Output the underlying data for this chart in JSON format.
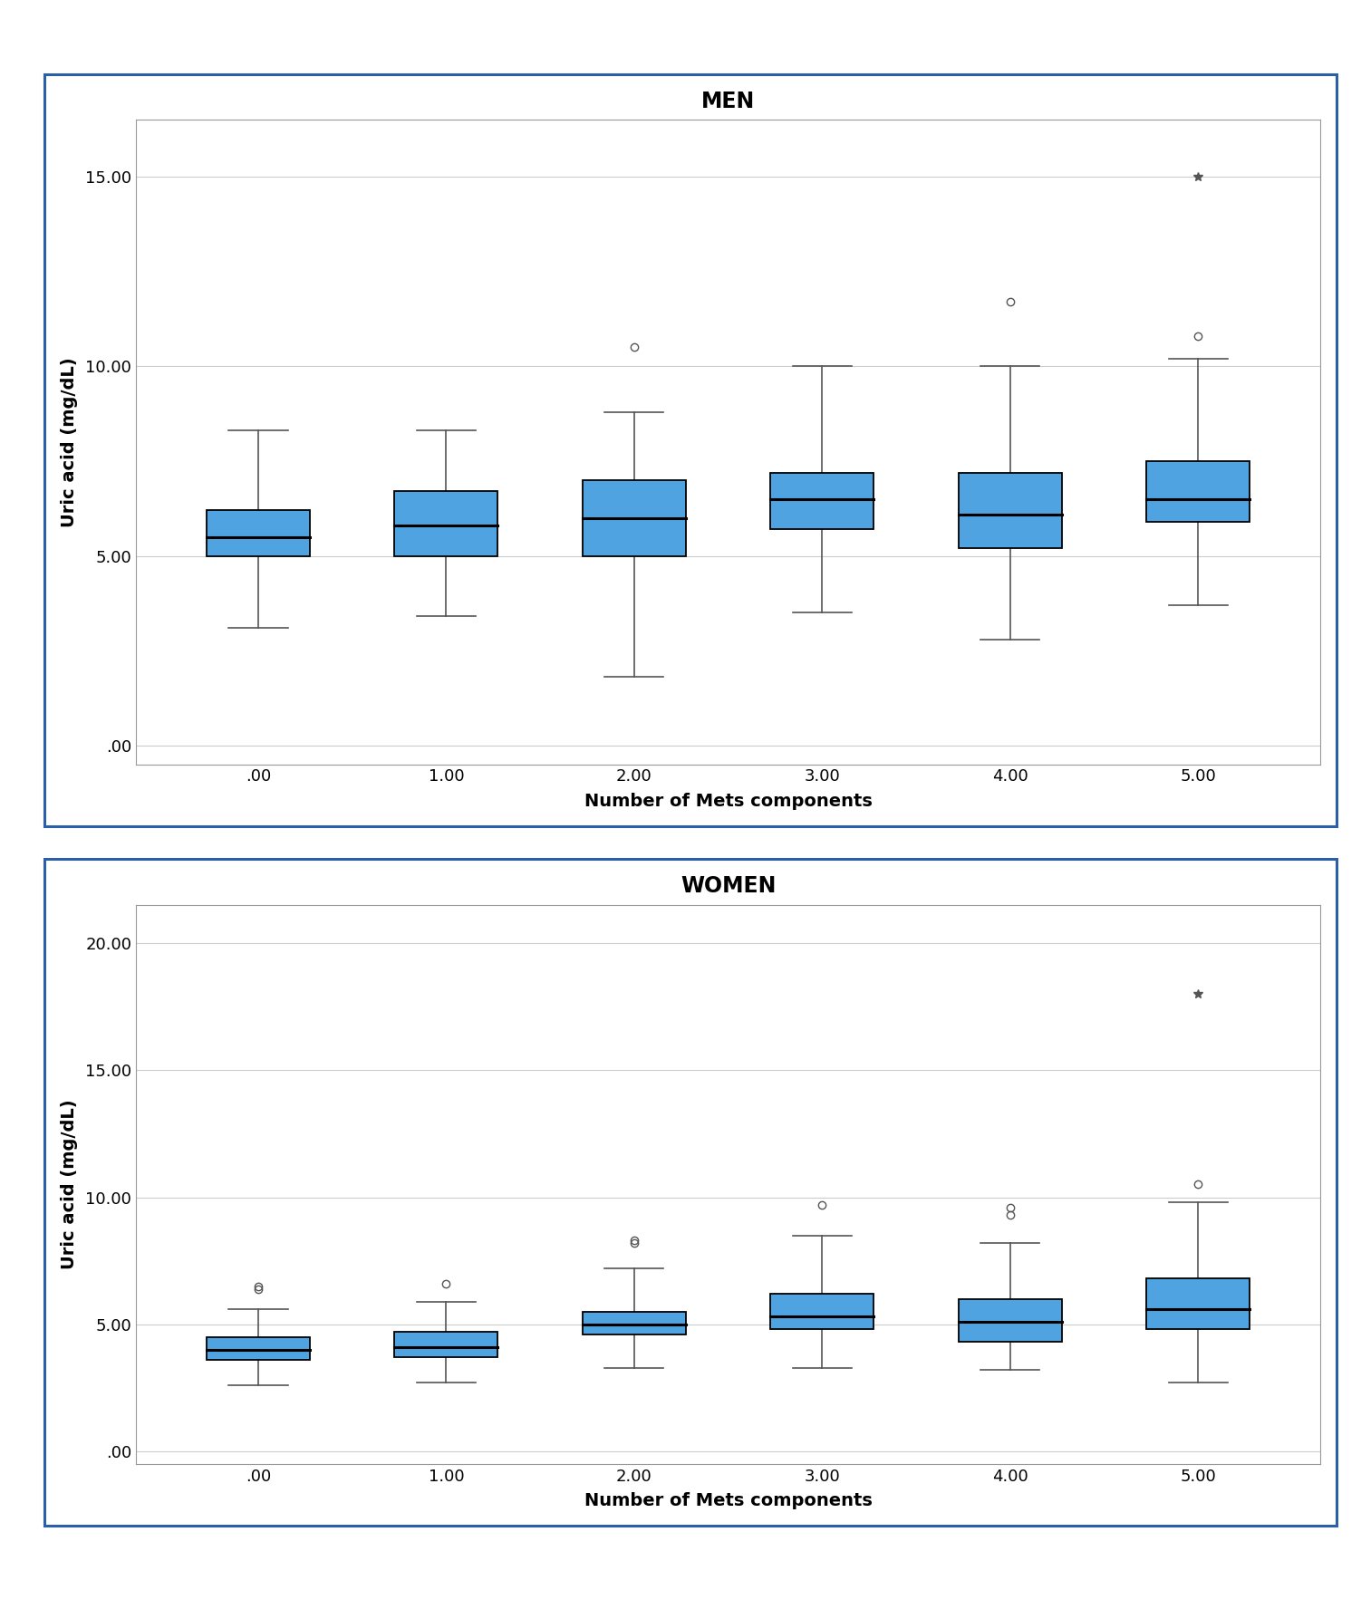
{
  "men": {
    "title": "MEN",
    "xlabel": "Number of Mets components",
    "ylabel": "Uric acid (mg/dL)",
    "yticks": [
      0.0,
      5.0,
      10.0,
      15.0
    ],
    "ytick_labels": [
      ".00",
      "5.00",
      "10.00",
      "15.00"
    ],
    "ylim": [
      -0.5,
      16.5
    ],
    "xtick_labels": [
      ".00",
      "1.00",
      "2.00",
      "3.00",
      "4.00",
      "5.00"
    ],
    "boxes": [
      {
        "q1": 5.0,
        "median": 5.5,
        "q3": 6.2,
        "whislo": 3.1,
        "whishi": 8.3,
        "fliers_circle": [],
        "fliers_star": []
      },
      {
        "q1": 5.0,
        "median": 5.8,
        "q3": 6.7,
        "whislo": 3.4,
        "whishi": 8.3,
        "fliers_circle": [],
        "fliers_star": []
      },
      {
        "q1": 5.0,
        "median": 6.0,
        "q3": 7.0,
        "whislo": 1.8,
        "whishi": 8.8,
        "fliers_circle": [
          10.5
        ],
        "fliers_star": []
      },
      {
        "q1": 5.7,
        "median": 6.5,
        "q3": 7.2,
        "whislo": 3.5,
        "whishi": 10.0,
        "fliers_circle": [],
        "fliers_star": []
      },
      {
        "q1": 5.2,
        "median": 6.1,
        "q3": 7.2,
        "whislo": 2.8,
        "whishi": 10.0,
        "fliers_circle": [
          11.7
        ],
        "fliers_star": []
      },
      {
        "q1": 5.9,
        "median": 6.5,
        "q3": 7.5,
        "whislo": 3.7,
        "whishi": 10.2,
        "fliers_circle": [
          10.8
        ],
        "fliers_star": [
          15.0
        ]
      }
    ]
  },
  "women": {
    "title": "WOMEN",
    "xlabel": "Number of Mets components",
    "ylabel": "Uric acid (mg/dL)",
    "yticks": [
      0.0,
      5.0,
      10.0,
      15.0,
      20.0
    ],
    "ytick_labels": [
      ".00",
      "5.00",
      "10.00",
      "15.00",
      "20.00"
    ],
    "ylim": [
      -0.5,
      21.5
    ],
    "xtick_labels": [
      ".00",
      "1.00",
      "2.00",
      "3.00",
      "4.00",
      "5.00"
    ],
    "boxes": [
      {
        "q1": 3.6,
        "median": 4.0,
        "q3": 4.5,
        "whislo": 2.6,
        "whishi": 5.6,
        "fliers_circle": [
          6.5,
          6.4
        ],
        "fliers_star": []
      },
      {
        "q1": 3.7,
        "median": 4.1,
        "q3": 4.7,
        "whislo": 2.7,
        "whishi": 5.9,
        "fliers_circle": [
          6.6
        ],
        "fliers_star": []
      },
      {
        "q1": 4.6,
        "median": 5.0,
        "q3": 5.5,
        "whislo": 3.3,
        "whishi": 7.2,
        "fliers_circle": [
          8.2,
          8.3
        ],
        "fliers_star": []
      },
      {
        "q1": 4.8,
        "median": 5.3,
        "q3": 6.2,
        "whislo": 3.3,
        "whishi": 8.5,
        "fliers_circle": [
          9.7
        ],
        "fliers_star": []
      },
      {
        "q1": 4.3,
        "median": 5.1,
        "q3": 6.0,
        "whislo": 3.2,
        "whishi": 8.2,
        "fliers_circle": [
          9.3,
          9.6
        ],
        "fliers_star": []
      },
      {
        "q1": 4.8,
        "median": 5.6,
        "q3": 6.8,
        "whislo": 2.7,
        "whishi": 9.8,
        "fliers_circle": [
          10.5
        ],
        "fliers_star": [
          18.0
        ]
      }
    ]
  },
  "box_color": "#4fa3e0",
  "box_edge_color": "#000000",
  "median_color": "#000000",
  "whisker_color": "#555555",
  "flier_color": "#555555",
  "background_color": "#ffffff",
  "outer_border_color": "#2b5faa",
  "box_width": 0.55,
  "grid_color": "#cccccc",
  "spine_color": "#999999",
  "title_fontsize": 17,
  "label_fontsize": 14,
  "tick_fontsize": 13
}
